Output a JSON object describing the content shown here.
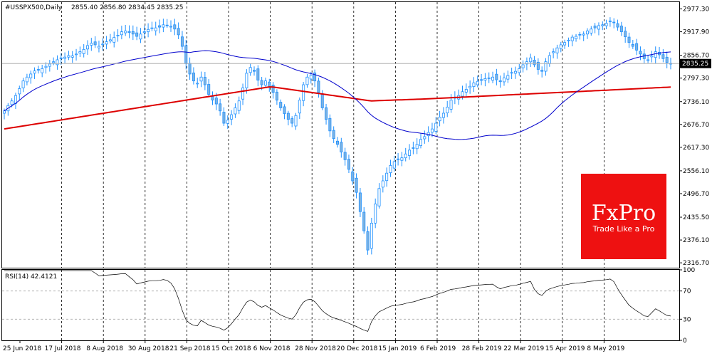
{
  "header": {
    "symbol": "#USSPX500,Daily",
    "ohlc": "2855.40 2856.80 2834.45 2835.25"
  },
  "price_tag": "2835.25",
  "rsi_label": "RSI(14) 42.4121",
  "logo": {
    "name": "FxPro",
    "tagline": "Trade Like a Pro"
  },
  "colors": {
    "bull": "#1e90ff",
    "bear": "#1e90ff",
    "body_fill": "#7fb3e0",
    "ma_fast": "#0000cc",
    "ma_slow": "#dd0000",
    "rsi_line": "#000000",
    "grid": "#000000",
    "logo_bg": "#ee1111"
  },
  "chart_data": {
    "type": "candlestick",
    "price_axis": {
      "range": [
        2304.0,
        2995.0
      ],
      "ticks": [
        "2977.30",
        "2917.90",
        "2856.70",
        "2797.30",
        "2736.10",
        "2676.70",
        "2617.30",
        "2556.10",
        "2496.70",
        "2435.50",
        "2376.10",
        "2316.70"
      ]
    },
    "rsi_axis": {
      "range": [
        0,
        100
      ],
      "ticks": [
        "100",
        "70",
        "30",
        "0"
      ],
      "levels": [
        70,
        30
      ]
    },
    "time_axis": [
      "25 Jun 2018",
      "17 Jul 2018",
      "8 Aug 2018",
      "30 Aug 2018",
      "21 Sep 2018",
      "15 Oct 2018",
      "6 Nov 2018",
      "28 Nov 2018",
      "20 Dec 2018",
      "15 Jan 2019",
      "6 Feb 2019",
      "28 Feb 2019",
      "22 Mar 2019",
      "15 Apr 2019",
      "8 May 2019"
    ],
    "current_price": 2835.25,
    "close_series": [
      2712,
      2726,
      2738,
      2752,
      2770,
      2790,
      2800,
      2808,
      2816,
      2818,
      2822,
      2828,
      2834,
      2840,
      2845,
      2848,
      2852,
      2856,
      2855,
      2860,
      2866,
      2872,
      2882,
      2888,
      2884,
      2880,
      2886,
      2892,
      2897,
      2903,
      2909,
      2918,
      2920,
      2916,
      2912,
      2906,
      2912,
      2918,
      2924,
      2928,
      2928,
      2930,
      2936,
      2935,
      2932,
      2925,
      2910,
      2880,
      2835,
      2808,
      2790,
      2784,
      2800,
      2780,
      2755,
      2740,
      2730,
      2712,
      2680,
      2688,
      2702,
      2720,
      2738,
      2772,
      2810,
      2825,
      2815,
      2792,
      2780,
      2790,
      2775,
      2760,
      2740,
      2720,
      2705,
      2690,
      2680,
      2700,
      2740,
      2780,
      2800,
      2805,
      2790,
      2760,
      2720,
      2690,
      2660,
      2640,
      2625,
      2605,
      2585,
      2560,
      2530,
      2500,
      2450,
      2400,
      2350,
      2420,
      2470,
      2510,
      2530,
      2550,
      2570,
      2580,
      2585,
      2590,
      2600,
      2610,
      2615,
      2625,
      2638,
      2645,
      2656,
      2665,
      2680,
      2696,
      2706,
      2722,
      2740,
      2745,
      2752,
      2762,
      2768,
      2776,
      2785,
      2789,
      2792,
      2796,
      2798,
      2800,
      2793,
      2788,
      2798,
      2804,
      2812,
      2815,
      2822,
      2832,
      2840,
      2850,
      2832,
      2820,
      2815,
      2840,
      2856,
      2866,
      2876,
      2884,
      2890,
      2896,
      2904,
      2906,
      2910,
      2912,
      2920,
      2925,
      2928,
      2934,
      2936,
      2940,
      2946,
      2942,
      2930,
      2918,
      2905,
      2890,
      2880,
      2870,
      2860,
      2848,
      2845,
      2855,
      2866,
      2858,
      2848,
      2838,
      2835
    ]
  }
}
